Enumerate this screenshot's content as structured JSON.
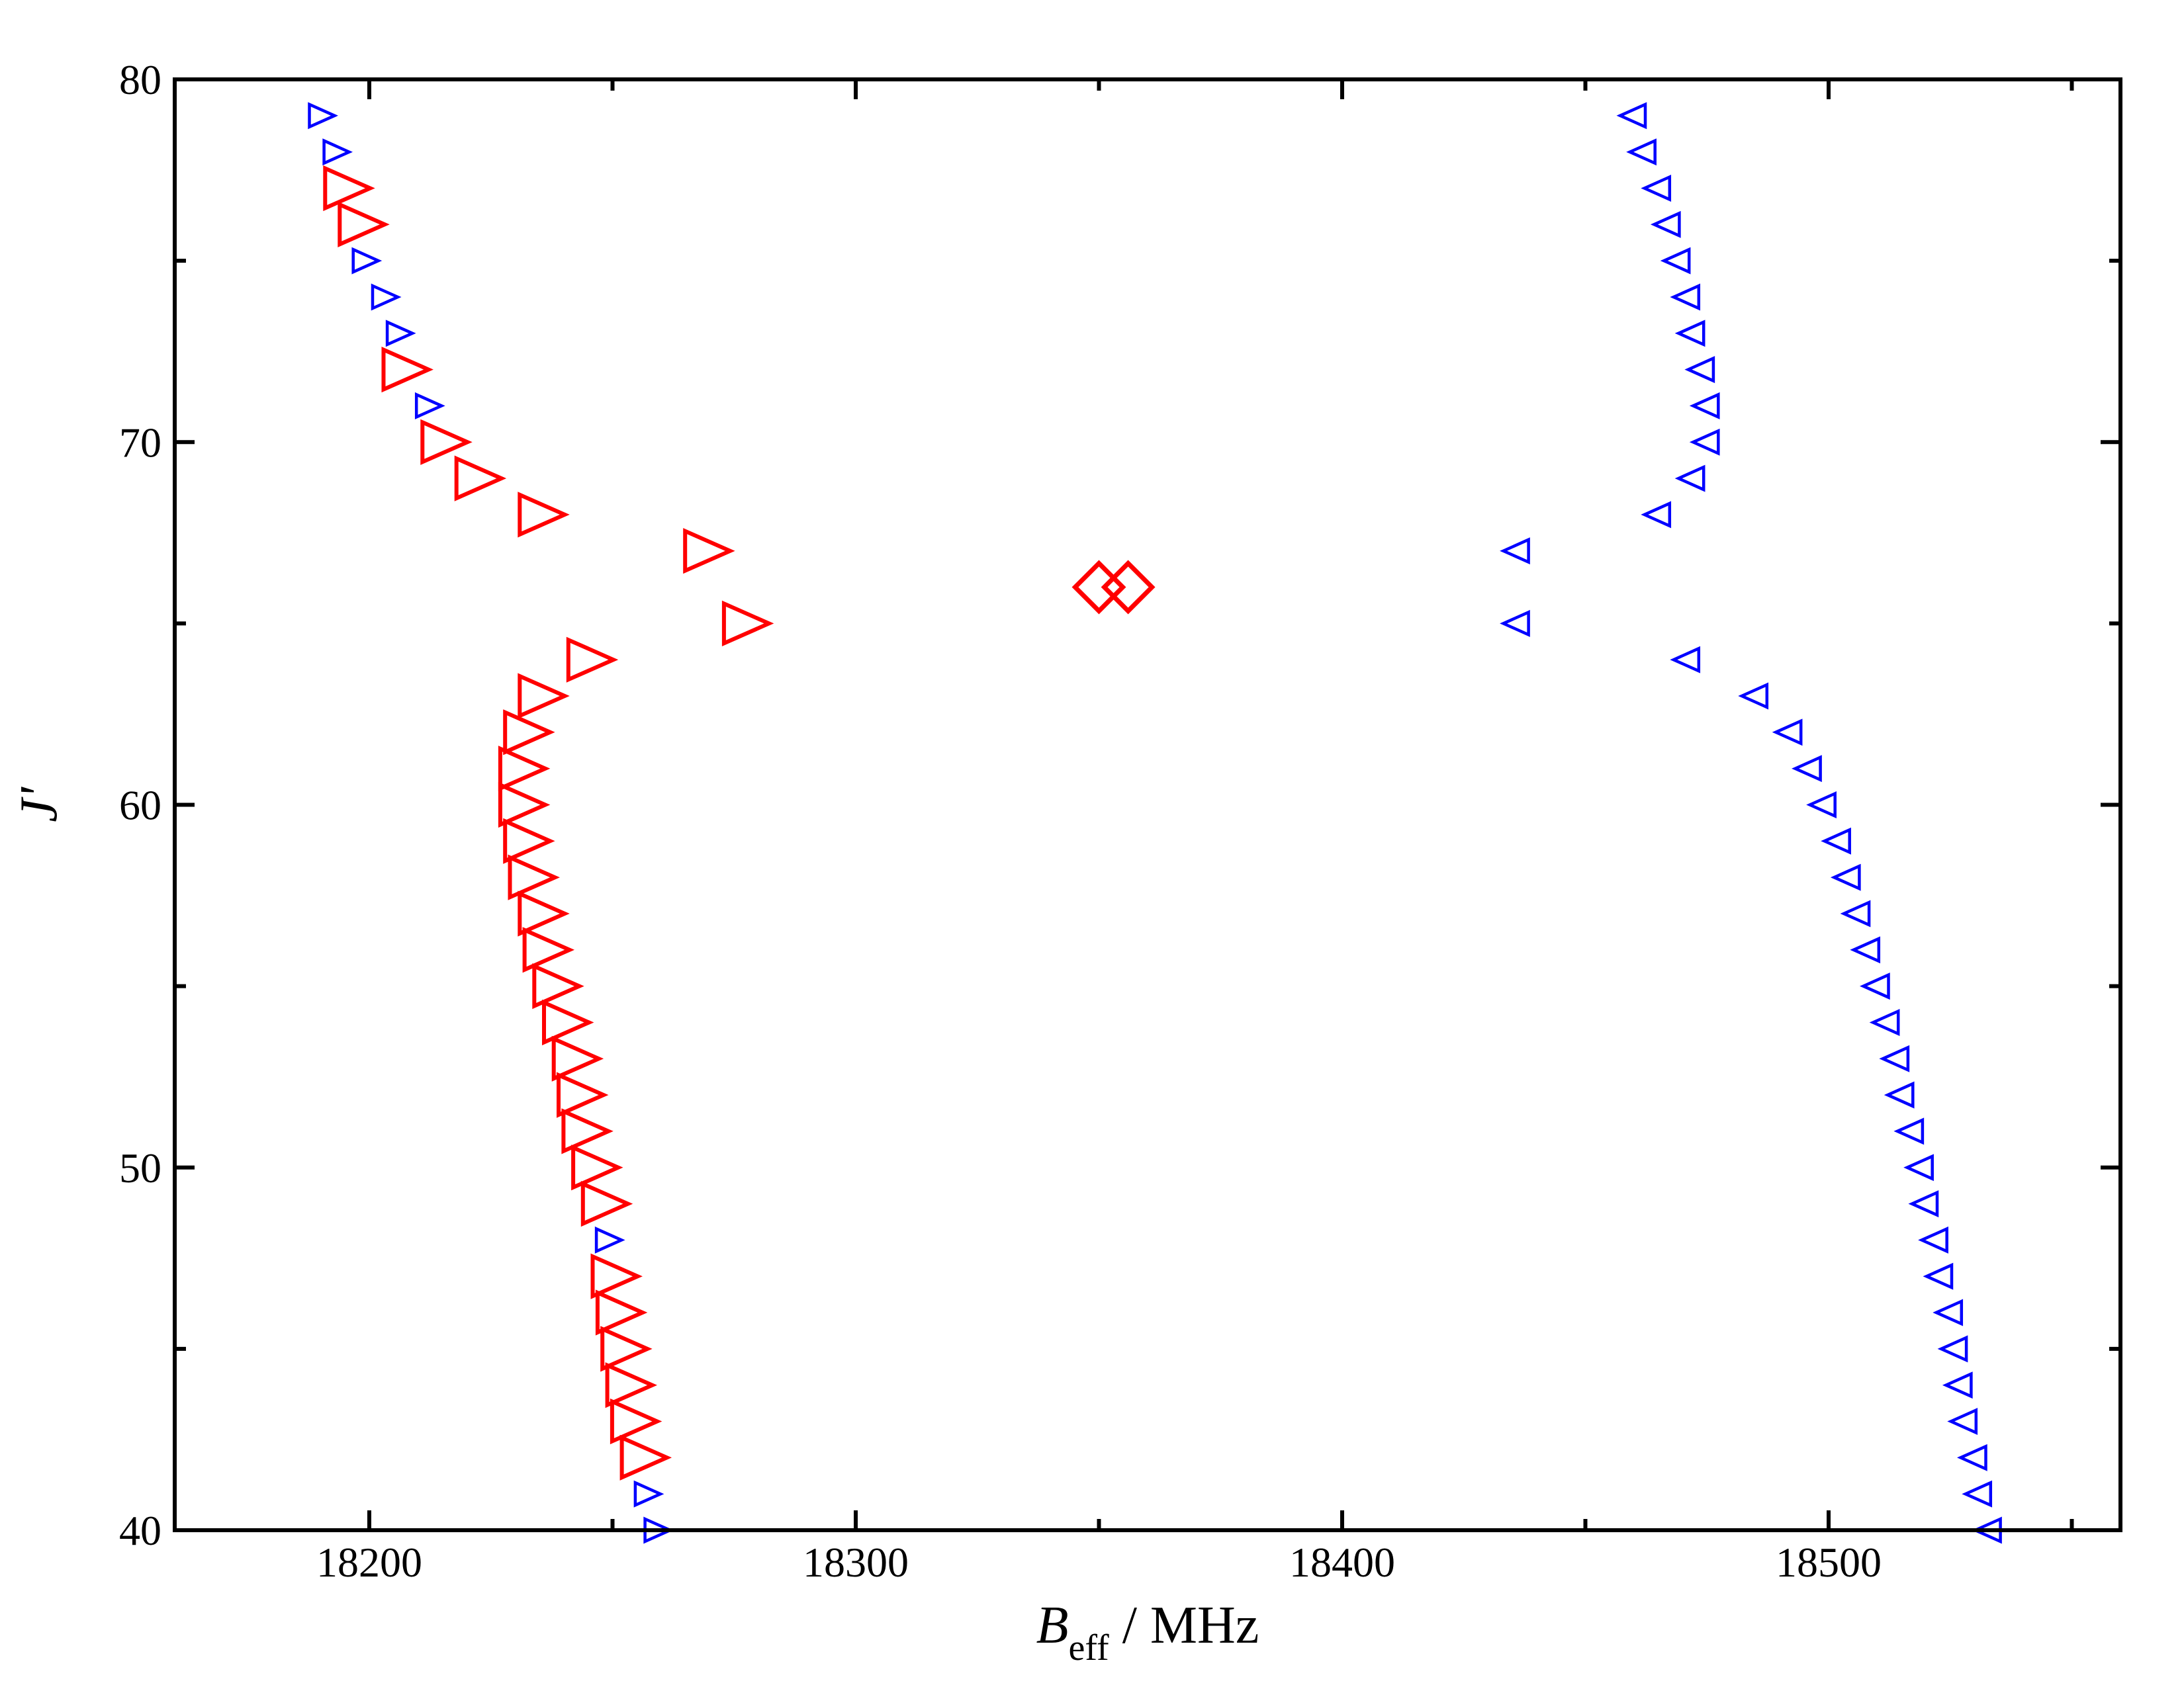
{
  "chart_data": {
    "type": "scatter",
    "title": "",
    "xlabel": {
      "main": "B",
      "sub": "eff",
      "suffix": " / MHz"
    },
    "ylabel": "J'",
    "xlim": [
      18160,
      18560
    ],
    "ylim": [
      40,
      80
    ],
    "xticks": [
      18200,
      18300,
      18400,
      18500
    ],
    "xtick_labels": [
      "18200",
      "18300",
      "18400",
      "18500"
    ],
    "xminor": [
      18250,
      18350,
      18450,
      18550,
      18150
    ],
    "yticks": [
      40,
      50,
      60,
      70,
      80
    ],
    "ytick_labels": [
      "40",
      "50",
      "60",
      "70",
      "80"
    ],
    "yminor": [
      45,
      55,
      65,
      75
    ],
    "grid": false,
    "colors": {
      "red": "#ff0000",
      "blue": "#0000ff",
      "axis": "#000000"
    },
    "series": [
      {
        "name": "red-large-right-triangles",
        "color": "#ff0000",
        "marker": "triangle-right-large",
        "points": [
          [
            18195,
            77
          ],
          [
            18198,
            76
          ],
          [
            18207,
            72
          ],
          [
            18215,
            70
          ],
          [
            18222,
            69
          ],
          [
            18235,
            68
          ],
          [
            18269,
            67
          ],
          [
            18277,
            65
          ],
          [
            18245,
            64
          ],
          [
            18235,
            63
          ],
          [
            18232,
            62
          ],
          [
            18231,
            61
          ],
          [
            18231,
            60
          ],
          [
            18232,
            59
          ],
          [
            18233,
            58
          ],
          [
            18235,
            57
          ],
          [
            18236,
            56
          ],
          [
            18238,
            55
          ],
          [
            18240,
            54
          ],
          [
            18242,
            53
          ],
          [
            18243,
            52
          ],
          [
            18244,
            51
          ],
          [
            18246,
            50
          ],
          [
            18248,
            49
          ],
          [
            18250,
            47
          ],
          [
            18251,
            46
          ],
          [
            18252,
            45
          ],
          [
            18253,
            44
          ],
          [
            18254,
            43
          ],
          [
            18256,
            42
          ]
        ]
      },
      {
        "name": "blue-small-right-triangles",
        "color": "#0000ff",
        "marker": "triangle-right-small",
        "points": [
          [
            18190,
            79
          ],
          [
            18193,
            78
          ],
          [
            18199,
            75
          ],
          [
            18203,
            74
          ],
          [
            18206,
            73
          ],
          [
            18212,
            71
          ],
          [
            18249,
            48
          ],
          [
            18257,
            41
          ],
          [
            18259,
            40
          ]
        ]
      },
      {
        "name": "blue-small-left-triangles",
        "color": "#0000ff",
        "marker": "triangle-left-small",
        "points": [
          [
            18460,
            79
          ],
          [
            18462,
            78
          ],
          [
            18465,
            77
          ],
          [
            18467,
            76
          ],
          [
            18469,
            75
          ],
          [
            18471,
            74
          ],
          [
            18472,
            73
          ],
          [
            18474,
            72
          ],
          [
            18475,
            71
          ],
          [
            18475,
            70
          ],
          [
            18472,
            69
          ],
          [
            18465,
            68
          ],
          [
            18436,
            67
          ],
          [
            18436,
            65
          ],
          [
            18471,
            64
          ],
          [
            18485,
            63
          ],
          [
            18492,
            62
          ],
          [
            18496,
            61
          ],
          [
            18499,
            60
          ],
          [
            18502,
            59
          ],
          [
            18504,
            58
          ],
          [
            18506,
            57
          ],
          [
            18508,
            56
          ],
          [
            18510,
            55
          ],
          [
            18512,
            54
          ],
          [
            18514,
            53
          ],
          [
            18515,
            52
          ],
          [
            18517,
            51
          ],
          [
            18519,
            50
          ],
          [
            18520,
            49
          ],
          [
            18522,
            48
          ],
          [
            18523,
            47
          ],
          [
            18525,
            46
          ],
          [
            18526,
            45
          ],
          [
            18527,
            44
          ],
          [
            18528,
            43
          ],
          [
            18530,
            42
          ],
          [
            18531,
            41
          ],
          [
            18533,
            40
          ]
        ]
      },
      {
        "name": "red-diamonds",
        "color": "#ff0000",
        "marker": "diamond",
        "points": [
          [
            18350,
            66
          ],
          [
            18356,
            66
          ]
        ]
      }
    ]
  }
}
